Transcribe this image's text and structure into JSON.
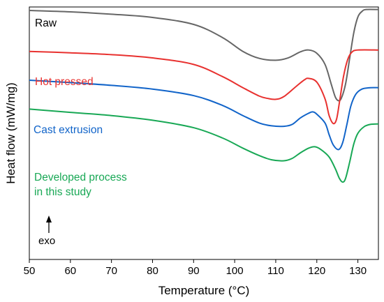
{
  "chart_data": {
    "type": "line",
    "title": "",
    "xlabel": "Temperature (°C)",
    "ylabel": "Heat flow (mW/mg)",
    "xlim": [
      50,
      135
    ],
    "x_ticks": [
      50,
      60,
      70,
      80,
      90,
      100,
      110,
      120,
      130
    ],
    "y_ticks_shown": false,
    "grid": false,
    "direction_annotation": {
      "text": "exo",
      "arrow": "up"
    },
    "series": [
      {
        "name": "Raw",
        "color": "#666666",
        "points": [
          [
            50,
            0.0
          ],
          [
            60,
            0.3
          ],
          [
            70,
            0.8
          ],
          [
            80,
            1.5
          ],
          [
            90,
            3.0
          ],
          [
            97,
            5.8
          ],
          [
            102,
            8.8
          ],
          [
            106,
            10.3
          ],
          [
            110,
            10.7
          ],
          [
            113,
            10.2
          ],
          [
            116,
            8.9
          ],
          [
            118,
            8.5
          ],
          [
            120,
            9.2
          ],
          [
            122,
            11.6
          ],
          [
            123.5,
            15.8
          ],
          [
            124.5,
            18.6
          ],
          [
            125.3,
            19.4
          ],
          [
            126,
            18.8
          ],
          [
            127,
            15.8
          ],
          [
            128,
            10.3
          ],
          [
            129,
            4.8
          ],
          [
            130,
            1.4
          ],
          [
            131,
            0.2
          ],
          [
            132,
            -0.2
          ],
          [
            135,
            -0.2
          ]
        ]
      },
      {
        "name": "Hot pressed",
        "color": "#e8312f",
        "points": [
          [
            50,
            8.8
          ],
          [
            60,
            9.1
          ],
          [
            70,
            9.5
          ],
          [
            80,
            10.2
          ],
          [
            90,
            11.6
          ],
          [
            97,
            14.2
          ],
          [
            102,
            16.6
          ],
          [
            106,
            18.4
          ],
          [
            108,
            18.9
          ],
          [
            110,
            19.1
          ],
          [
            112,
            18.5
          ],
          [
            115,
            16.3
          ],
          [
            117,
            14.9
          ],
          [
            118,
            14.6
          ],
          [
            120,
            15.4
          ],
          [
            122,
            19.0
          ],
          [
            123,
            22.6
          ],
          [
            124,
            24.3
          ],
          [
            124.8,
            23.4
          ],
          [
            125.5,
            19.8
          ],
          [
            126.5,
            14.2
          ],
          [
            127.5,
            10.6
          ],
          [
            128.5,
            9.0
          ],
          [
            130,
            8.5
          ],
          [
            135,
            8.5
          ]
        ]
      },
      {
        "name": "Cast extrusion",
        "color": "#1164c9",
        "points": [
          [
            50,
            15.0
          ],
          [
            60,
            15.5
          ],
          [
            70,
            16.1
          ],
          [
            80,
            16.9
          ],
          [
            90,
            18.3
          ],
          [
            97,
            20.4
          ],
          [
            102,
            22.6
          ],
          [
            106,
            24.2
          ],
          [
            109,
            24.8
          ],
          [
            112,
            24.9
          ],
          [
            114,
            24.5
          ],
          [
            116,
            23.1
          ],
          [
            118,
            22.1
          ],
          [
            119,
            21.8
          ],
          [
            120,
            22.3
          ],
          [
            122,
            24.2
          ],
          [
            123,
            26.7
          ],
          [
            124,
            28.9
          ],
          [
            125.3,
            29.9
          ],
          [
            126.3,
            28.4
          ],
          [
            127.3,
            24.6
          ],
          [
            128.3,
            20.5
          ],
          [
            129.5,
            18.0
          ],
          [
            131,
            16.9
          ],
          [
            133,
            16.6
          ],
          [
            135,
            16.6
          ]
        ]
      },
      {
        "name": "Developed process in this study",
        "color": "#18a855",
        "points": [
          [
            50,
            21.2
          ],
          [
            60,
            21.9
          ],
          [
            70,
            22.6
          ],
          [
            80,
            23.6
          ],
          [
            90,
            25.2
          ],
          [
            97,
            27.4
          ],
          [
            102,
            29.6
          ],
          [
            106,
            31.2
          ],
          [
            109,
            32.1
          ],
          [
            112,
            32.3
          ],
          [
            114,
            31.8
          ],
          [
            116,
            30.6
          ],
          [
            118,
            29.6
          ],
          [
            119.5,
            29.3
          ],
          [
            121,
            29.9
          ],
          [
            123,
            31.5
          ],
          [
            124.5,
            34.0
          ],
          [
            125.5,
            36.1
          ],
          [
            126.3,
            36.9
          ],
          [
            127,
            36.1
          ],
          [
            128,
            32.6
          ],
          [
            129,
            28.7
          ],
          [
            130,
            26.4
          ],
          [
            131.5,
            25.0
          ],
          [
            133,
            24.5
          ],
          [
            135,
            24.4
          ]
        ]
      }
    ]
  },
  "legend_labels": {
    "raw": "Raw",
    "hot_pressed": "Hot pressed",
    "cast_extrusion": "Cast extrusion",
    "developed_line1": "Developed process",
    "developed_line2": "in this study"
  },
  "annotation": {
    "exo": "exo"
  },
  "axes": {
    "xlabel": "Temperature (°C)",
    "ylabel": "Heat flow (mW/mg)"
  }
}
